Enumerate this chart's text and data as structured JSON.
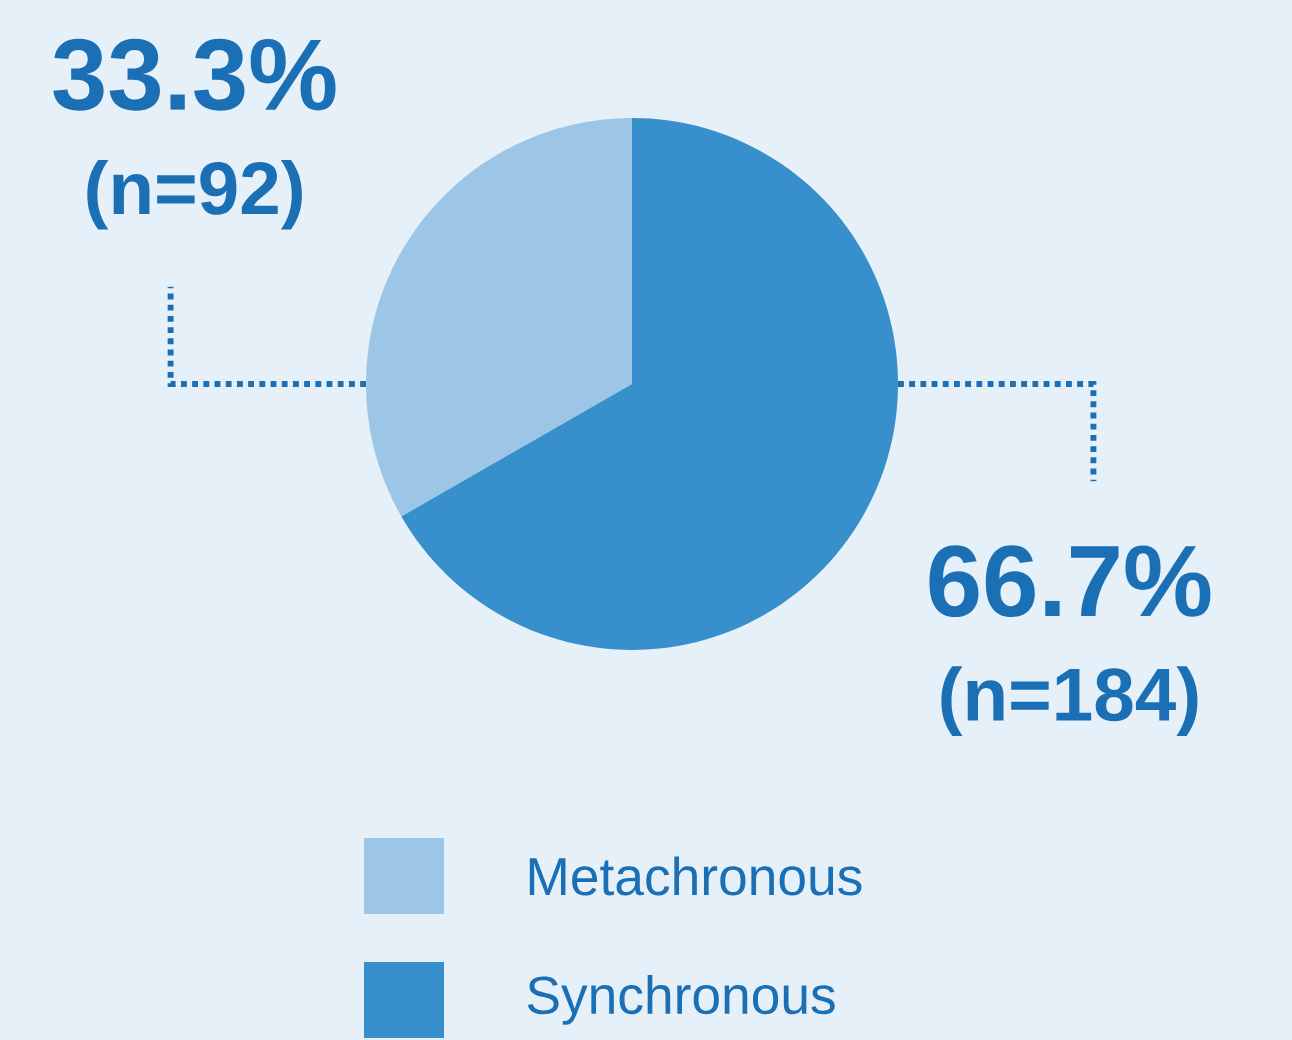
{
  "chart_data": {
    "type": "pie",
    "categories": [
      "Metachronous",
      "Synchronous"
    ],
    "values": [
      33.3,
      66.7
    ],
    "colors": [
      "#9dc6e6",
      "#378fcb"
    ],
    "value_labels": [
      "33.3%",
      "66.7%"
    ],
    "annotations": [
      "(n=92)",
      "(n=184)"
    ],
    "legend": "bottom"
  }
}
